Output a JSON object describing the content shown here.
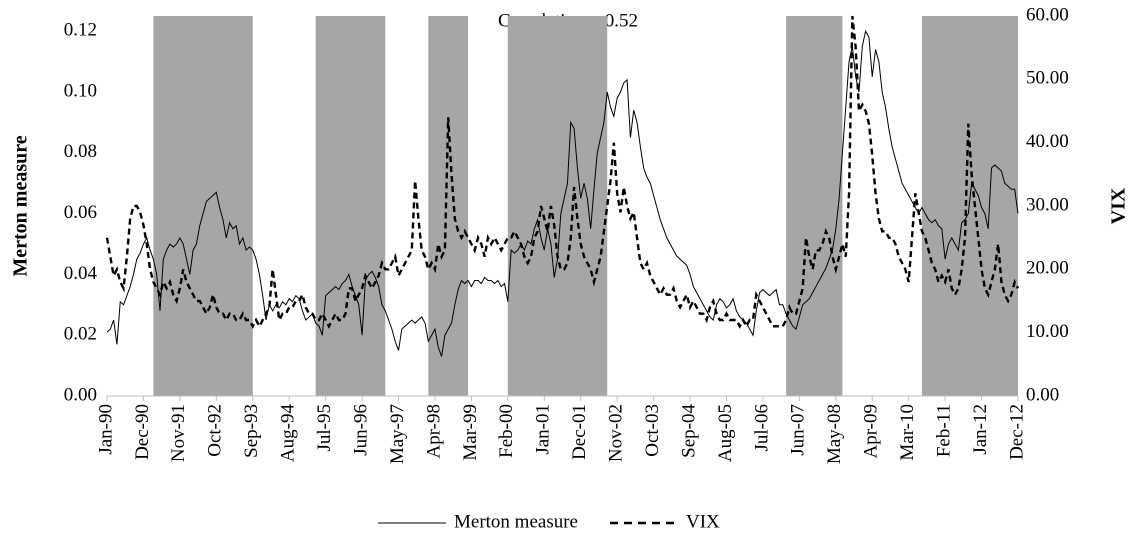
{
  "chart_data": {
    "type": "line",
    "annotation": "Correlation = 0.52",
    "y_label": "Merton measure",
    "y2_label": "VIX",
    "legend": "bottom",
    "shade_color": "#a6a6a6",
    "shaded_periods": [
      [
        14,
        44
      ],
      [
        63,
        84
      ],
      [
        97,
        109
      ],
      [
        121,
        151
      ],
      [
        205,
        222
      ],
      [
        246,
        275
      ]
    ],
    "ylim": [
      0,
      0.125
    ],
    "yticks": [
      {
        "value": 0,
        "label": "0.00"
      },
      {
        "value": 0.02,
        "label": "0.02"
      },
      {
        "value": 0.04,
        "label": "0.04"
      },
      {
        "value": 0.06,
        "label": "0.06"
      },
      {
        "value": 0.08,
        "label": "0.08"
      },
      {
        "value": 0.1,
        "label": "0.10"
      },
      {
        "value": 0.12,
        "label": "0.12"
      }
    ],
    "y2lim": [
      0,
      60
    ],
    "y2ticks": [
      {
        "value": 0,
        "label": "0.00"
      },
      {
        "value": 10,
        "label": "10.00"
      },
      {
        "value": 20,
        "label": "20.00"
      },
      {
        "value": 30,
        "label": "30.00"
      },
      {
        "value": 40,
        "label": "40.00"
      },
      {
        "value": 50,
        "label": "50.00"
      },
      {
        "value": 60,
        "label": "60.00"
      }
    ],
    "categories": [
      "Jan-90",
      null,
      null,
      null,
      null,
      null,
      null,
      null,
      null,
      null,
      null,
      "Dec-90",
      null,
      null,
      null,
      null,
      null,
      null,
      null,
      null,
      null,
      null,
      "Nov-91",
      null,
      null,
      null,
      null,
      null,
      null,
      null,
      null,
      null,
      null,
      "Oct-92",
      null,
      null,
      null,
      null,
      null,
      null,
      null,
      null,
      null,
      null,
      "Sep-93",
      null,
      null,
      null,
      null,
      null,
      null,
      null,
      null,
      null,
      null,
      "Aug-94",
      null,
      null,
      null,
      null,
      null,
      null,
      null,
      null,
      null,
      null,
      "Jul-95",
      null,
      null,
      null,
      null,
      null,
      null,
      null,
      null,
      null,
      null,
      "Jun-96",
      null,
      null,
      null,
      null,
      null,
      null,
      null,
      null,
      null,
      null,
      "May-97",
      null,
      null,
      null,
      null,
      null,
      null,
      null,
      null,
      null,
      null,
      "Apr-98",
      null,
      null,
      null,
      null,
      null,
      null,
      null,
      null,
      null,
      null,
      "Mar-99",
      null,
      null,
      null,
      null,
      null,
      null,
      null,
      null,
      null,
      null,
      "Feb-00",
      null,
      null,
      null,
      null,
      null,
      null,
      null,
      null,
      null,
      null,
      "Jan-01",
      null,
      null,
      null,
      null,
      null,
      null,
      null,
      null,
      null,
      null,
      "Dec-01",
      null,
      null,
      null,
      null,
      null,
      null,
      null,
      null,
      null,
      null,
      "Nov-02",
      null,
      null,
      null,
      null,
      null,
      null,
      null,
      null,
      null,
      null,
      "Oct-03",
      null,
      null,
      null,
      null,
      null,
      null,
      null,
      null,
      null,
      null,
      "Sep-04",
      null,
      null,
      null,
      null,
      null,
      null,
      null,
      null,
      null,
      null,
      "Aug-05",
      null,
      null,
      null,
      null,
      null,
      null,
      null,
      null,
      null,
      null,
      "Jul-06",
      null,
      null,
      null,
      null,
      null,
      null,
      null,
      null,
      null,
      null,
      "Jun-07",
      null,
      null,
      null,
      null,
      null,
      null,
      null,
      null,
      null,
      null,
      "May-08",
      null,
      null,
      null,
      null,
      null,
      null,
      null,
      null,
      null,
      null,
      "Apr-09",
      null,
      null,
      null,
      null,
      null,
      null,
      null,
      null,
      null,
      null,
      "Mar-10",
      null,
      null,
      null,
      null,
      null,
      null,
      null,
      null,
      null,
      null,
      "Feb-11",
      null,
      null,
      null,
      null,
      null,
      null,
      null,
      null,
      null,
      null,
      "Jan-12",
      null,
      null,
      null,
      null,
      null,
      null,
      null,
      null,
      null,
      null,
      "Dec-12"
    ],
    "series": [
      {
        "name": "Merton measure",
        "color": "#000000",
        "style": "solid",
        "values": [
          0.021,
          0.022,
          0.025,
          0.017,
          0.031,
          0.03,
          0.033,
          0.036,
          0.04,
          0.045,
          0.047,
          0.05,
          0.052,
          0.048,
          0.045,
          0.04,
          0.028,
          0.045,
          0.048,
          0.05,
          0.049,
          0.05,
          0.052,
          0.05,
          0.045,
          0.04,
          0.048,
          0.05,
          0.056,
          0.06,
          0.064,
          0.065,
          0.066,
          0.067,
          0.062,
          0.058,
          0.052,
          0.057,
          0.055,
          0.056,
          0.05,
          0.052,
          0.048,
          0.049,
          0.048,
          0.045,
          0.04,
          0.033,
          0.025,
          0.03,
          0.028,
          0.03,
          0.029,
          0.031,
          0.03,
          0.032,
          0.031,
          0.033,
          0.032,
          0.028,
          0.025,
          0.026,
          0.027,
          0.024,
          0.023,
          0.02,
          0.033,
          0.034,
          0.035,
          0.036,
          0.035,
          0.037,
          0.038,
          0.04,
          0.036,
          0.033,
          0.03,
          0.02,
          0.038,
          0.04,
          0.041,
          0.039,
          0.036,
          0.03,
          0.028,
          0.025,
          0.022,
          0.018,
          0.015,
          0.022,
          0.023,
          0.024,
          0.025,
          0.024,
          0.025,
          0.026,
          0.024,
          0.018,
          0.02,
          0.022,
          0.016,
          0.013,
          0.02,
          0.022,
          0.024,
          0.03,
          0.035,
          0.038,
          0.037,
          0.038,
          0.036,
          0.038,
          0.038,
          0.037,
          0.039,
          0.038,
          0.038,
          0.037,
          0.038,
          0.036,
          0.037,
          0.031,
          0.048,
          0.047,
          0.048,
          0.05,
          0.048,
          0.051,
          0.05,
          0.055,
          0.058,
          0.052,
          0.048,
          0.055,
          0.05,
          0.039,
          0.045,
          0.06,
          0.065,
          0.07,
          0.09,
          0.088,
          0.075,
          0.065,
          0.07,
          0.065,
          0.055,
          0.068,
          0.08,
          0.085,
          0.09,
          0.1,
          0.095,
          0.092,
          0.098,
          0.1,
          0.103,
          0.104,
          0.085,
          0.094,
          0.09,
          0.082,
          0.075,
          0.072,
          0.07,
          0.066,
          0.062,
          0.058,
          0.055,
          0.052,
          0.05,
          0.048,
          0.046,
          0.045,
          0.044,
          0.043,
          0.04,
          0.036,
          0.034,
          0.032,
          0.03,
          0.028,
          0.026,
          0.025,
          0.03,
          0.032,
          0.031,
          0.029,
          0.03,
          0.032,
          0.028,
          0.026,
          0.025,
          0.024,
          0.022,
          0.02,
          0.028,
          0.034,
          0.035,
          0.034,
          0.033,
          0.034,
          0.035,
          0.03,
          0.03,
          0.027,
          0.025,
          0.023,
          0.022,
          0.026,
          0.03,
          0.031,
          0.032,
          0.034,
          0.036,
          0.038,
          0.04,
          0.042,
          0.045,
          0.048,
          0.055,
          0.065,
          0.08,
          0.095,
          0.11,
          0.115,
          0.105,
          0.1,
          0.115,
          0.12,
          0.118,
          0.105,
          0.114,
          0.11,
          0.1,
          0.095,
          0.088,
          0.082,
          0.078,
          0.074,
          0.07,
          0.068,
          0.066,
          0.064,
          0.062,
          0.06,
          0.062,
          0.06,
          0.058,
          0.057,
          0.058,
          0.056,
          0.055,
          0.045,
          0.05,
          0.052,
          0.05,
          0.048,
          0.057,
          0.058,
          0.06,
          0.07,
          0.068,
          0.066,
          0.062,
          0.06,
          0.055,
          0.075,
          0.076,
          0.075,
          0.074,
          0.07,
          0.069,
          0.068,
          0.068,
          0.06
        ]
      },
      {
        "name": "VIX",
        "color": "#000000",
        "style": "dashed",
        "axis": "y2",
        "values": [
          25,
          22,
          19,
          20,
          18,
          17,
          22,
          28,
          30,
          30,
          29,
          27,
          24,
          20,
          18,
          17,
          16,
          18,
          17,
          18,
          16,
          15,
          17,
          20,
          18,
          17,
          16,
          15,
          15,
          14,
          13,
          14,
          16,
          14,
          13,
          13,
          12,
          13,
          13,
          12,
          12,
          13,
          12,
          12,
          11,
          12,
          11,
          12,
          13,
          14,
          20,
          16,
          12,
          13,
          13,
          14,
          14,
          15,
          15,
          16,
          14,
          13,
          13,
          12,
          12,
          13,
          12,
          11,
          12,
          13,
          12,
          12,
          13,
          17,
          17,
          15,
          16,
          17,
          19,
          18,
          17,
          18,
          19,
          21,
          20,
          20,
          21,
          22,
          19,
          20,
          21,
          22,
          23,
          34,
          28,
          23,
          22,
          20,
          21,
          20,
          24,
          22,
          23,
          44,
          35,
          28,
          26,
          25,
          26,
          25,
          24,
          23,
          25,
          24,
          22,
          25,
          24,
          25,
          24,
          23,
          24,
          25,
          25,
          26,
          25,
          24,
          22,
          21,
          22,
          25,
          26,
          30,
          28,
          26,
          30,
          27,
          22,
          20,
          20,
          21,
          25,
          33,
          28,
          24,
          22,
          21,
          20,
          18,
          20,
          22,
          26,
          30,
          34,
          40,
          32,
          29,
          33,
          30,
          28,
          29,
          25,
          21,
          20,
          21,
          19,
          18,
          17,
          16,
          17,
          16,
          16,
          17,
          15,
          14,
          15,
          16,
          14,
          15,
          14,
          13,
          13,
          12,
          14,
          15,
          13,
          12,
          12,
          13,
          12,
          12,
          12,
          11,
          12,
          11,
          12,
          12,
          16,
          15,
          14,
          13,
          12,
          11,
          11,
          11,
          11,
          12,
          14,
          13,
          13,
          15,
          17,
          25,
          22,
          20,
          23,
          23,
          24,
          26,
          25,
          22,
          20,
          22,
          24,
          22,
          32,
          60,
          55,
          45,
          46,
          45,
          43,
          38,
          32,
          28,
          26,
          26,
          25,
          25,
          24,
          22,
          21,
          20,
          18,
          25,
          32,
          29,
          26,
          25,
          23,
          21,
          20,
          18,
          19,
          18,
          20,
          17,
          16,
          17,
          20,
          25,
          43,
          35,
          30,
          25,
          20,
          17,
          16,
          18,
          20,
          24,
          18,
          16,
          15,
          16,
          18,
          17
        ]
      }
    ]
  }
}
